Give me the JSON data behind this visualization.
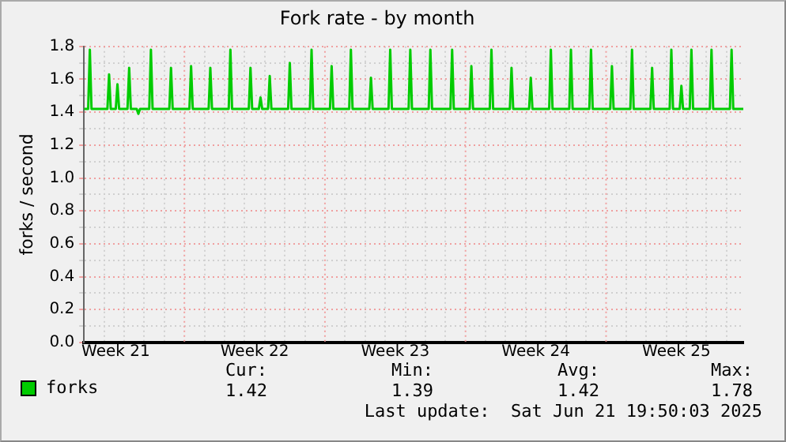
{
  "chart_data": {
    "type": "line",
    "title": "Fork rate - by month",
    "ylabel": "forks / second",
    "xlim": [
      "2025-05-20T00:00",
      "2025-06-21T20:00"
    ],
    "ylim": [
      0,
      1.8
    ],
    "xticks": [
      {
        "value": "2025-05-20T00:00",
        "label": null
      },
      {
        "value": "2025-05-21T00:00",
        "label": null
      },
      {
        "value": "2025-05-21T14:00",
        "label": "Week 21"
      },
      {
        "value": "2025-05-22T00:00",
        "label": null
      },
      {
        "value": "2025-05-23T00:00",
        "label": null
      },
      {
        "value": "2025-05-24T00:00",
        "label": null
      },
      {
        "value": "2025-05-26T00:00",
        "label": null
      },
      {
        "value": "2025-05-27T00:00",
        "label": null
      },
      {
        "value": "2025-05-28T00:00",
        "label": null
      },
      {
        "value": "2025-05-28T12:00",
        "label": "Week 22"
      },
      {
        "value": "2025-05-29T00:00",
        "label": null
      },
      {
        "value": "2025-05-30T00:00",
        "label": null
      },
      {
        "value": "2025-05-31T00:00",
        "label": null
      },
      {
        "value": "2025-06-02T00:00",
        "label": null
      },
      {
        "value": "2025-06-03T00:00",
        "label": null
      },
      {
        "value": "2025-06-04T00:00",
        "label": null
      },
      {
        "value": "2025-06-04T12:00",
        "label": "Week 23"
      },
      {
        "value": "2025-06-05T00:00",
        "label": null
      },
      {
        "value": "2025-06-06T00:00",
        "label": null
      },
      {
        "value": "2025-06-07T00:00",
        "label": null
      },
      {
        "value": "2025-06-09T00:00",
        "label": null
      },
      {
        "value": "2025-06-10T00:00",
        "label": null
      },
      {
        "value": "2025-06-11T00:00",
        "label": null
      },
      {
        "value": "2025-06-11T12:00",
        "label": "Week 24"
      },
      {
        "value": "2025-06-12T00:00",
        "label": null
      },
      {
        "value": "2025-06-13T00:00",
        "label": null
      },
      {
        "value": "2025-06-14T00:00",
        "label": null
      },
      {
        "value": "2025-06-16T00:00",
        "label": null
      },
      {
        "value": "2025-06-17T00:00",
        "label": null
      },
      {
        "value": "2025-06-18T00:00",
        "label": null
      },
      {
        "value": "2025-06-18T12:00",
        "label": "Week 25"
      },
      {
        "value": "2025-06-19T00:00",
        "label": null
      },
      {
        "value": "2025-06-20T00:00",
        "label": null
      },
      {
        "value": "2025-06-21T00:00",
        "label": null
      }
    ],
    "yticks": [
      {
        "value": 0,
        "label": "0.0"
      },
      {
        "value": 0.1,
        "label": null
      },
      {
        "value": 0.2,
        "label": "0.2"
      },
      {
        "value": 0.3,
        "label": null
      },
      {
        "value": 0.4,
        "label": "0.4"
      },
      {
        "value": 0.5,
        "label": null
      },
      {
        "value": 0.6,
        "label": "0.6"
      },
      {
        "value": 0.7,
        "label": null
      },
      {
        "value": 0.8,
        "label": "0.8"
      },
      {
        "value": 0.9,
        "label": null
      },
      {
        "value": 1.0,
        "label": "1.0"
      },
      {
        "value": 1.1,
        "label": null
      },
      {
        "value": 1.2,
        "label": "1.2"
      },
      {
        "value": 1.3,
        "label": null
      },
      {
        "value": 1.4,
        "label": "1.4"
      },
      {
        "value": 1.5,
        "label": null
      },
      {
        "value": 1.6,
        "label": "1.6"
      },
      {
        "value": 1.7,
        "label": null
      },
      {
        "value": 1.8,
        "label": "1.8"
      }
    ],
    "ref_lines": [
      {
        "axis": "x",
        "value": "2025-05-25T00:00",
        "color": "#f0a0a0",
        "line_style": "dotted"
      },
      {
        "axis": "x",
        "value": "2025-06-01T00:00",
        "color": "#f0a0a0",
        "line_style": "dotted"
      },
      {
        "axis": "x",
        "value": "2025-06-08T00:00",
        "color": "#f0a0a0",
        "line_style": "dotted"
      },
      {
        "axis": "x",
        "value": "2025-06-15T00:00",
        "color": "#f0a0a0",
        "line_style": "dotted"
      }
    ],
    "grid": true,
    "legend": "bottom left",
    "marker": "none",
    "line_style": "solid",
    "x": [
      "2025-05-20T00:00",
      "2025-05-20T05:00",
      "2025-05-20T07:00",
      "2025-05-20T09:00",
      "2025-05-21T04:00",
      "2025-05-21T06:00",
      "2025-05-21T08:00",
      "2025-05-21T14:00",
      "2025-05-21T16:00",
      "2025-05-21T18:00",
      "2025-05-22T04:00",
      "2025-05-22T06:00",
      "2025-05-22T08:00",
      "2025-05-22T15:00",
      "2025-05-22T17:00",
      "2025-05-22T19:00",
      "2025-05-23T06:00",
      "2025-05-23T08:00",
      "2025-05-23T10:00",
      "2025-05-24T06:00",
      "2025-05-24T08:00",
      "2025-05-24T10:00",
      "2025-05-25T06:00",
      "2025-05-25T08:00",
      "2025-05-25T10:00",
      "2025-05-26T05:00",
      "2025-05-26T07:00",
      "2025-05-26T09:00",
      "2025-05-27T05:00",
      "2025-05-27T07:00",
      "2025-05-27T09:00",
      "2025-05-28T05:00",
      "2025-05-28T07:00",
      "2025-05-28T09:00",
      "2025-05-28T17:00",
      "2025-05-28T19:00",
      "2025-05-28T21:00",
      "2025-05-29T04:00",
      "2025-05-29T06:00",
      "2025-05-29T08:00",
      "2025-05-30T04:00",
      "2025-05-30T06:00",
      "2025-05-30T08:00",
      "2025-05-31T06:00",
      "2025-05-31T08:00",
      "2025-05-31T10:00",
      "2025-06-01T06:00",
      "2025-06-01T08:00",
      "2025-06-01T10:00",
      "2025-06-02T05:00",
      "2025-06-02T07:00",
      "2025-06-02T09:00",
      "2025-06-03T05:00",
      "2025-06-03T07:00",
      "2025-06-03T09:00",
      "2025-06-04T04:00",
      "2025-06-04T06:00",
      "2025-06-04T08:00",
      "2025-06-05T04:00",
      "2025-06-05T06:00",
      "2025-06-05T08:00",
      "2025-06-06T04:00",
      "2025-06-06T06:00",
      "2025-06-06T08:00",
      "2025-06-07T06:00",
      "2025-06-07T08:00",
      "2025-06-07T10:00",
      "2025-06-08T05:00",
      "2025-06-08T07:00",
      "2025-06-08T09:00",
      "2025-06-09T05:00",
      "2025-06-09T07:00",
      "2025-06-09T09:00",
      "2025-06-10T05:00",
      "2025-06-10T07:00",
      "2025-06-10T09:00",
      "2025-06-11T04:00",
      "2025-06-11T06:00",
      "2025-06-11T08:00",
      "2025-06-12T04:00",
      "2025-06-12T06:00",
      "2025-06-12T08:00",
      "2025-06-13T04:00",
      "2025-06-13T06:00",
      "2025-06-13T08:00",
      "2025-06-14T04:00",
      "2025-06-14T06:00",
      "2025-06-14T08:00",
      "2025-06-15T05:00",
      "2025-06-15T07:00",
      "2025-06-15T09:00",
      "2025-06-16T05:00",
      "2025-06-16T07:00",
      "2025-06-16T09:00",
      "2025-06-17T05:00",
      "2025-06-17T07:00",
      "2025-06-17T09:00",
      "2025-06-18T04:00",
      "2025-06-18T06:00",
      "2025-06-18T08:00",
      "2025-06-18T16:00",
      "2025-06-18T18:00",
      "2025-06-18T20:00",
      "2025-06-19T04:00",
      "2025-06-19T06:00",
      "2025-06-19T08:00",
      "2025-06-20T04:00",
      "2025-06-20T06:00",
      "2025-06-20T08:00",
      "2025-06-21T04:00",
      "2025-06-21T06:00",
      "2025-06-21T08:00",
      "2025-06-21T20:00"
    ],
    "series": [
      {
        "name": "forks",
        "color": "#00cc00",
        "values": [
          1.42,
          1.42,
          1.78,
          1.42,
          1.42,
          1.63,
          1.42,
          1.42,
          1.57,
          1.42,
          1.42,
          1.67,
          1.42,
          1.42,
          1.39,
          1.42,
          1.42,
          1.78,
          1.42,
          1.42,
          1.67,
          1.42,
          1.42,
          1.68,
          1.42,
          1.42,
          1.67,
          1.42,
          1.42,
          1.78,
          1.42,
          1.42,
          1.67,
          1.42,
          1.42,
          1.49,
          1.42,
          1.42,
          1.62,
          1.42,
          1.42,
          1.7,
          1.42,
          1.42,
          1.78,
          1.42,
          1.42,
          1.68,
          1.42,
          1.42,
          1.78,
          1.42,
          1.42,
          1.61,
          1.42,
          1.42,
          1.78,
          1.42,
          1.42,
          1.78,
          1.42,
          1.42,
          1.78,
          1.42,
          1.42,
          1.78,
          1.42,
          1.42,
          1.68,
          1.42,
          1.42,
          1.78,
          1.42,
          1.42,
          1.67,
          1.42,
          1.42,
          1.61,
          1.42,
          1.42,
          1.78,
          1.42,
          1.42,
          1.78,
          1.42,
          1.42,
          1.78,
          1.42,
          1.42,
          1.68,
          1.42,
          1.42,
          1.78,
          1.42,
          1.42,
          1.67,
          1.42,
          1.42,
          1.78,
          1.42,
          1.42,
          1.56,
          1.42,
          1.42,
          1.78,
          1.42,
          1.42,
          1.78,
          1.42,
          1.42,
          1.78,
          1.42,
          1.42
        ]
      }
    ],
    "annotations": [
      "Cur:",
      "1.42",
      "Min:",
      "1.39",
      "Avg:",
      "1.42",
      "Max:",
      "1.78",
      "Last update:  Sat Jun 21 19:50:03 2025"
    ]
  }
}
